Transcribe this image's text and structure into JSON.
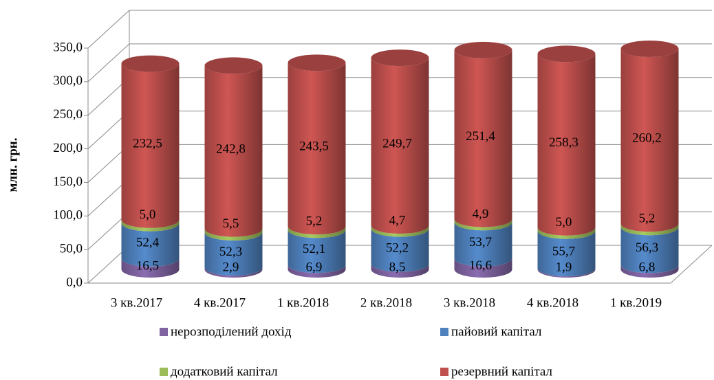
{
  "chart_data": {
    "type": "bar",
    "stacked": true,
    "shape": "cylinder",
    "y_label": "млн. грн.",
    "categories": [
      "3 кв.2017",
      "4 кв.2017",
      "1 кв.2018",
      "2 кв.2018",
      "3 кв.2018",
      "4 кв.2018",
      "1 кв.2019"
    ],
    "series": [
      {
        "name": "нерозподілений дохід",
        "color": "#8064a2",
        "values": [
          16.5,
          2.9,
          6.9,
          8.5,
          16.6,
          1.9,
          6.8
        ],
        "value_labels": [
          "16,5",
          "2,9",
          "6,9",
          "8,5",
          "16,6",
          "1,9",
          "6,8"
        ]
      },
      {
        "name": "пайовий капітал",
        "color": "#4f81bd",
        "values": [
          52.4,
          52.3,
          52.1,
          52.2,
          53.7,
          55.7,
          56.3
        ],
        "value_labels": [
          "52,4",
          "52,3",
          "52,1",
          "52,2",
          "53,7",
          "55,7",
          "56,3"
        ]
      },
      {
        "name": "додатковий капітал",
        "color": "#9bbb59",
        "values": [
          5.0,
          5.5,
          5.2,
          4.7,
          4.9,
          5.0,
          5.2
        ],
        "value_labels": [
          "5,0",
          "5,5",
          "5,2",
          "4,7",
          "4,9",
          "5,0",
          "5,2"
        ]
      },
      {
        "name": "резервний капітал",
        "color": "#c0504d",
        "values": [
          232.5,
          242.8,
          243.5,
          249.7,
          251.4,
          258.3,
          260.2
        ],
        "value_labels": [
          "232,5",
          "242,8",
          "243,5",
          "249,7",
          "251,4",
          "258,3",
          "260,2"
        ]
      }
    ],
    "ylim": [
      0,
      350
    ],
    "yticks": [
      {
        "value": 0,
        "label": "0,0"
      },
      {
        "value": 50,
        "label": "50,0"
      },
      {
        "value": 100,
        "label": "100,0"
      },
      {
        "value": 150,
        "label": "150,0"
      },
      {
        "value": 200,
        "label": "200,0"
      },
      {
        "value": 250,
        "label": "250,0"
      },
      {
        "value": 300,
        "label": "300,0"
      },
      {
        "value": 350,
        "label": "350,0"
      }
    ],
    "grid": true,
    "legend": "bottom"
  }
}
